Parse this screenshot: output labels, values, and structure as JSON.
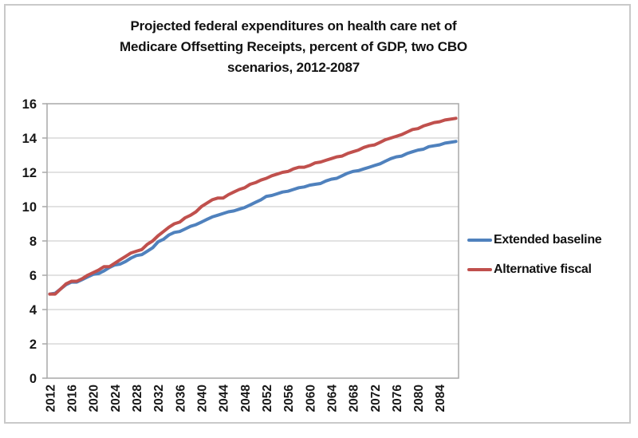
{
  "title_lines": [
    "Projected federal expenditures on health care net of",
    "Medicare Offsetting Receipts, percent of GDP, two CBO",
    "scenarios, 2012-2087"
  ],
  "colors": {
    "grid": "#c6c6c6",
    "plot_border": "#a9a9a9",
    "axis_text": "#171717",
    "frame_border": "#c9c9c9",
    "extended_baseline": "#4F81BD",
    "alternative_fiscal": "#C0504D"
  },
  "chart_data": {
    "type": "line",
    "title": "Projected federal expenditures on health care net of Medicare Offsetting Receipts, percent of GDP, two CBO scenarios, 2012-2087",
    "xlabel": "",
    "ylabel": "",
    "ylim": [
      0,
      16
    ],
    "yticks": [
      0,
      2,
      4,
      6,
      8,
      10,
      12,
      14,
      16
    ],
    "xticks": [
      2012,
      2016,
      2020,
      2024,
      2028,
      2032,
      2036,
      2040,
      2044,
      2048,
      2052,
      2056,
      2060,
      2064,
      2068,
      2072,
      2076,
      2080,
      2084
    ],
    "grid": "horizontal",
    "legend_position": "right",
    "x": [
      2012,
      2013,
      2014,
      2015,
      2016,
      2017,
      2018,
      2019,
      2020,
      2021,
      2022,
      2023,
      2024,
      2025,
      2026,
      2027,
      2028,
      2029,
      2030,
      2031,
      2032,
      2033,
      2034,
      2035,
      2036,
      2037,
      2038,
      2039,
      2040,
      2041,
      2042,
      2043,
      2044,
      2045,
      2046,
      2047,
      2048,
      2049,
      2050,
      2051,
      2052,
      2053,
      2054,
      2055,
      2056,
      2057,
      2058,
      2059,
      2060,
      2061,
      2062,
      2063,
      2064,
      2065,
      2066,
      2067,
      2068,
      2069,
      2070,
      2071,
      2072,
      2073,
      2074,
      2075,
      2076,
      2077,
      2078,
      2079,
      2080,
      2081,
      2082,
      2083,
      2084,
      2085,
      2086,
      2087
    ],
    "series": [
      {
        "name": "Extended baseline",
        "color": "#4F81BD",
        "values": [
          4.9,
          4.95,
          5.2,
          5.45,
          5.6,
          5.6,
          5.75,
          5.9,
          6.05,
          6.1,
          6.25,
          6.45,
          6.6,
          6.65,
          6.8,
          7.0,
          7.15,
          7.2,
          7.4,
          7.6,
          7.95,
          8.1,
          8.35,
          8.5,
          8.55,
          8.7,
          8.85,
          8.95,
          9.1,
          9.25,
          9.4,
          9.5,
          9.6,
          9.7,
          9.75,
          9.85,
          9.95,
          10.1,
          10.25,
          10.4,
          10.6,
          10.65,
          10.75,
          10.85,
          10.9,
          11.0,
          11.1,
          11.15,
          11.25,
          11.3,
          11.35,
          11.5,
          11.6,
          11.65,
          11.8,
          11.95,
          12.05,
          12.1,
          12.2,
          12.3,
          12.4,
          12.5,
          12.65,
          12.8,
          12.9,
          12.95,
          13.1,
          13.2,
          13.3,
          13.35,
          13.5,
          13.55,
          13.6,
          13.7,
          13.75,
          13.8
        ]
      },
      {
        "name": "Alternative fiscal",
        "color": "#C0504D",
        "values": [
          4.9,
          4.9,
          5.2,
          5.5,
          5.65,
          5.65,
          5.8,
          6.0,
          6.15,
          6.3,
          6.5,
          6.5,
          6.7,
          6.9,
          7.1,
          7.3,
          7.4,
          7.5,
          7.8,
          8.0,
          8.3,
          8.55,
          8.8,
          9.0,
          9.1,
          9.35,
          9.5,
          9.7,
          10.0,
          10.2,
          10.4,
          10.5,
          10.5,
          10.7,
          10.85,
          11.0,
          11.1,
          11.3,
          11.4,
          11.55,
          11.65,
          11.8,
          11.9,
          12.0,
          12.05,
          12.2,
          12.3,
          12.3,
          12.4,
          12.55,
          12.6,
          12.7,
          12.8,
          12.9,
          12.95,
          13.1,
          13.2,
          13.3,
          13.45,
          13.55,
          13.6,
          13.75,
          13.9,
          14.0,
          14.1,
          14.2,
          14.35,
          14.5,
          14.55,
          14.7,
          14.8,
          14.9,
          14.95,
          15.05,
          15.1,
          15.15
        ]
      }
    ]
  }
}
